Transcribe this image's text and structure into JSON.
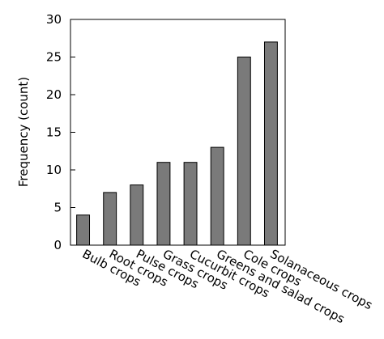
{
  "chart_data": {
    "type": "bar",
    "title": "",
    "xlabel": "",
    "ylabel": "Frequency (count)",
    "ylim": [
      0,
      30
    ],
    "yticks": [
      0,
      5,
      10,
      15,
      20,
      25,
      30
    ],
    "grid": false,
    "categories": [
      "Bulb crops",
      "Root crops",
      "Pulse crops",
      "Grass crops",
      "Cucurbit crops",
      "Greens and salad crops",
      "Cole crops",
      "Solanaceous crops"
    ],
    "values": [
      4,
      7,
      8,
      11,
      11,
      13,
      25,
      27
    ],
    "bar_color": "#7a7a7a",
    "bar_edge_color": "#000000"
  }
}
